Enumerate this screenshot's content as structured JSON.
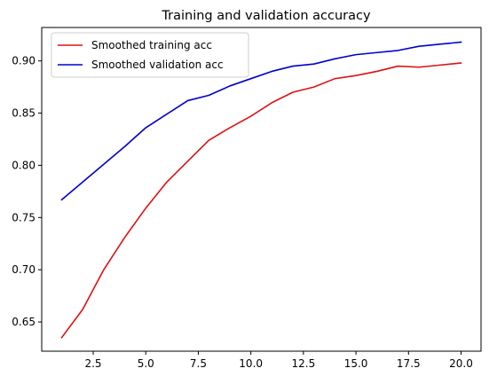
{
  "chart_data": {
    "type": "line",
    "title": "Training and validation accuracy",
    "xlabel": "",
    "ylabel": "",
    "xlim": [
      0.05,
      20.95
    ],
    "ylim": [
      0.622,
      0.932
    ],
    "xticks": [
      2.5,
      5.0,
      7.5,
      10.0,
      12.5,
      15.0,
      17.5,
      20.0
    ],
    "xtick_labels": [
      "2.5",
      "5.0",
      "7.5",
      "10.0",
      "12.5",
      "15.0",
      "17.5",
      "20.0"
    ],
    "yticks": [
      0.65,
      0.7,
      0.75,
      0.8,
      0.85,
      0.9
    ],
    "ytick_labels": [
      "0.65",
      "0.70",
      "0.75",
      "0.80",
      "0.85",
      "0.90"
    ],
    "grid": false,
    "legend_position": "top-left",
    "x": [
      1,
      2,
      3,
      4,
      5,
      6,
      7,
      8,
      9,
      10,
      11,
      12,
      13,
      14,
      15,
      16,
      17,
      18,
      19,
      20
    ],
    "series": [
      {
        "name": "Smoothed training acc",
        "color": "#dd1111",
        "values": [
          0.635,
          0.662,
          0.7,
          0.731,
          0.759,
          0.784,
          0.804,
          0.824,
          0.836,
          0.847,
          0.86,
          0.87,
          0.875,
          0.883,
          0.886,
          0.89,
          0.895,
          0.894,
          0.896,
          0.898
        ]
      },
      {
        "name": "Smoothed validation acc",
        "color": "#0000cc",
        "values": [
          0.767,
          0.784,
          0.801,
          0.818,
          0.836,
          0.849,
          0.862,
          0.867,
          0.876,
          0.883,
          0.89,
          0.895,
          0.897,
          0.902,
          0.906,
          0.908,
          0.91,
          0.914,
          0.916,
          0.918
        ]
      }
    ]
  }
}
